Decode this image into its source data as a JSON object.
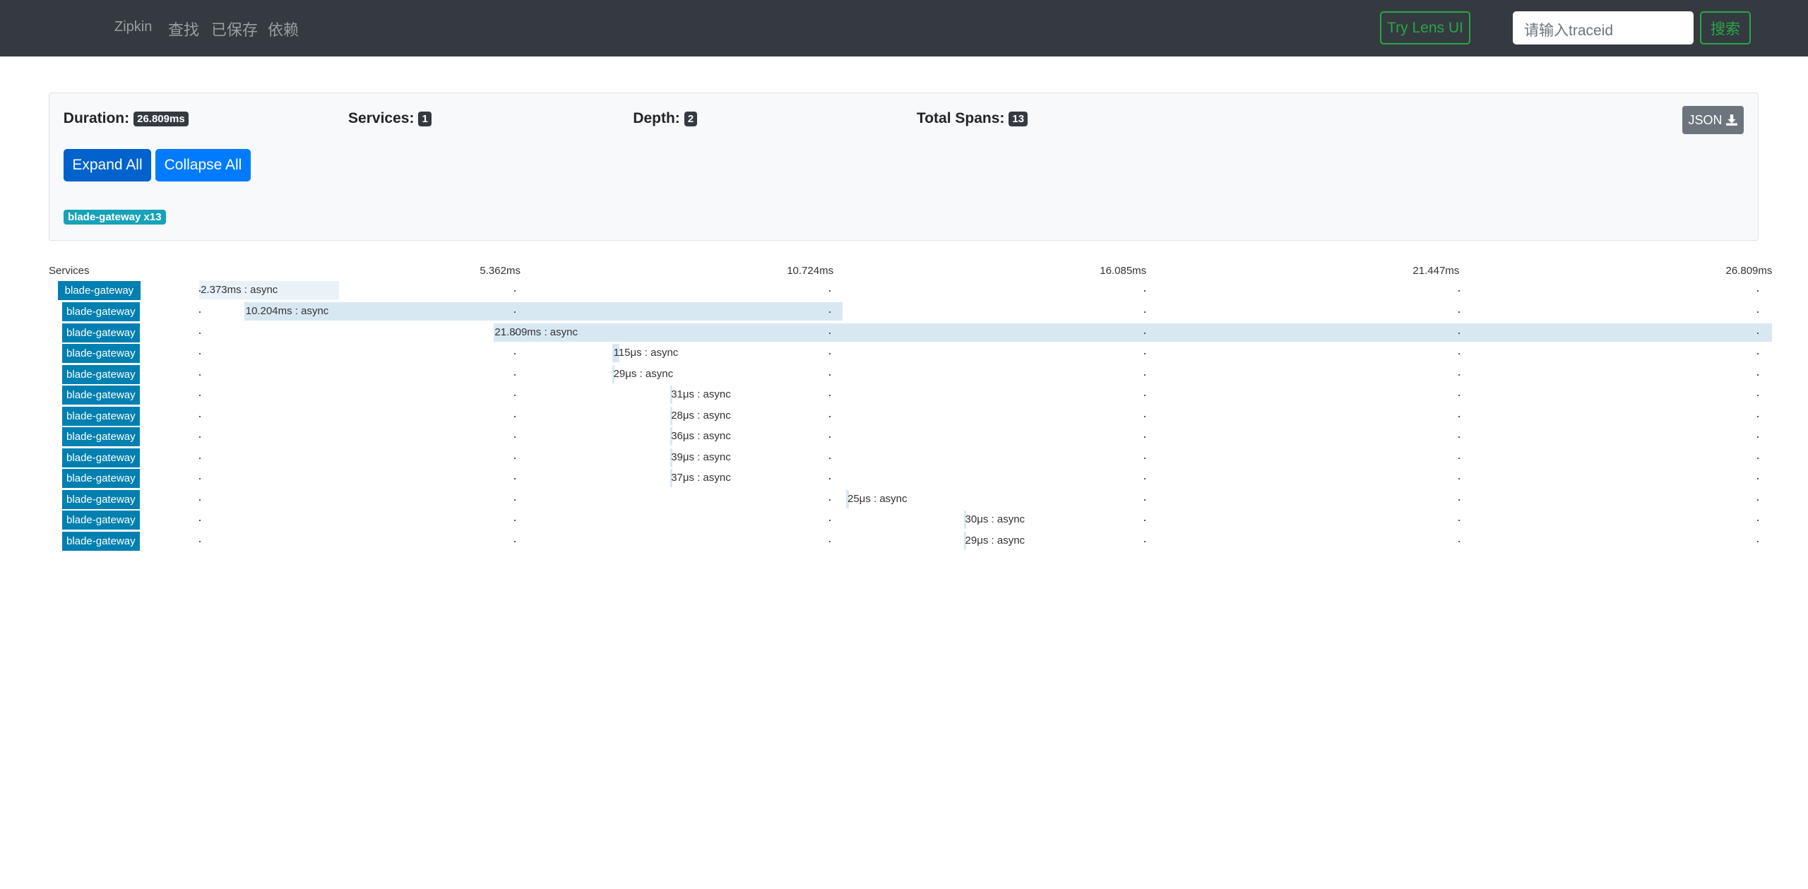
{
  "navbar": {
    "brand": "Zipkin",
    "links": [
      "查找",
      "已保存",
      "依赖"
    ],
    "lens_button": "Try Lens UI",
    "search_placeholder": "请输入traceid",
    "search_button": "搜索"
  },
  "summary": {
    "stats": [
      {
        "label": "Duration:",
        "value": "26.809ms"
      },
      {
        "label": "Services:",
        "value": "1"
      },
      {
        "label": "Depth:",
        "value": "2"
      },
      {
        "label": "Total Spans:",
        "value": "13"
      }
    ],
    "json_button": "JSON",
    "expand_button": "Expand All",
    "collapse_button": "Collapse All",
    "service_tags": [
      "blade-gateway x13"
    ]
  },
  "timeline": {
    "services_header": "Services",
    "ticks": [
      "5.362ms",
      "10.724ms",
      "16.085ms",
      "21.447ms",
      "26.809ms"
    ],
    "spans": [
      {
        "service": "blade-gateway",
        "label": "2.373ms : async"
      },
      {
        "service": "blade-gateway",
        "label": "10.204ms : async"
      },
      {
        "service": "blade-gateway",
        "label": "21.809ms : async"
      },
      {
        "service": "blade-gateway",
        "label": "115μs : async"
      },
      {
        "service": "blade-gateway",
        "label": "29μs : async"
      },
      {
        "service": "blade-gateway",
        "label": "31μs : async"
      },
      {
        "service": "blade-gateway",
        "label": "28μs : async"
      },
      {
        "service": "blade-gateway",
        "label": "36μs : async"
      },
      {
        "service": "blade-gateway",
        "label": "39μs : async"
      },
      {
        "service": "blade-gateway",
        "label": "37μs : async"
      },
      {
        "service": "blade-gateway",
        "label": "25μs : async"
      },
      {
        "service": "blade-gateway",
        "label": "30μs : async"
      },
      {
        "service": "blade-gateway",
        "label": "29μs : async"
      }
    ]
  }
}
